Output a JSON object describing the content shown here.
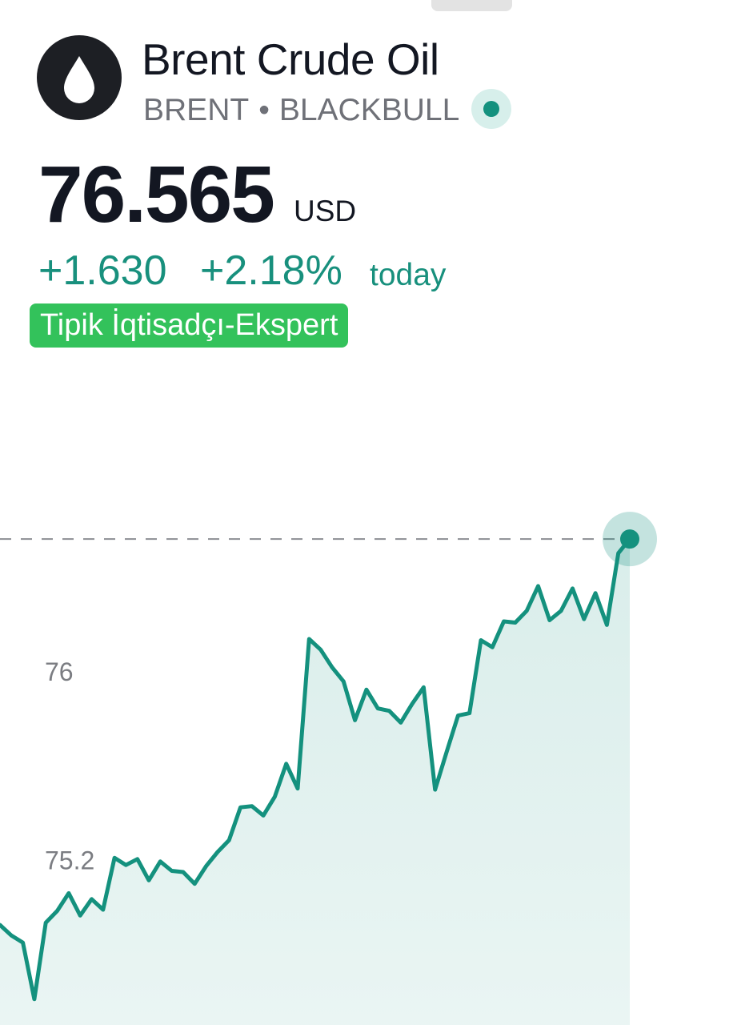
{
  "header": {
    "title": "Brent Crude Oil",
    "ticker": "BRENT",
    "separator": "•",
    "exchange": "BLACKBULL",
    "logo_icon": "oil-drop-icon",
    "status": "live-dot-icon"
  },
  "quote": {
    "price": "76.565",
    "currency": "USD",
    "change_abs": "+1.630",
    "change_pct": "+2.18%",
    "period": "today"
  },
  "badge": {
    "label": "Tipik İqtisadçı-Ekspert"
  },
  "colors": {
    "accent": "#14917e",
    "badge": "#33c25b",
    "text": "#131722",
    "muted": "#6f7178"
  },
  "chart_data": {
    "type": "area",
    "title": "",
    "xlabel": "",
    "ylabel": "",
    "yticks": [
      {
        "value": 75.2,
        "label": "75.2"
      },
      {
        "value": 76,
        "label": "76"
      }
    ],
    "ylim": [
      74.5,
      76.95
    ],
    "reference_value": 76.565,
    "grid": false,
    "series": [
      {
        "values": [
          74.925,
          74.88,
          74.85,
          74.61,
          74.935,
          74.985,
          75.06,
          74.965,
          75.035,
          74.99,
          75.21,
          75.18,
          75.205,
          75.115,
          75.195,
          75.155,
          75.15,
          75.1,
          75.175,
          75.235,
          75.285,
          75.425,
          75.43,
          75.39,
          75.47,
          75.61,
          75.505,
          76.14,
          76.095,
          76.02,
          75.96,
          75.795,
          75.925,
          75.845,
          75.835,
          75.785,
          75.865,
          75.935,
          75.5,
          75.66,
          75.815,
          75.825,
          76.135,
          76.105,
          76.215,
          76.21,
          76.26,
          76.365,
          76.22,
          76.26,
          76.355,
          76.225,
          76.335,
          76.2,
          76.505,
          76.565
        ]
      }
    ]
  }
}
